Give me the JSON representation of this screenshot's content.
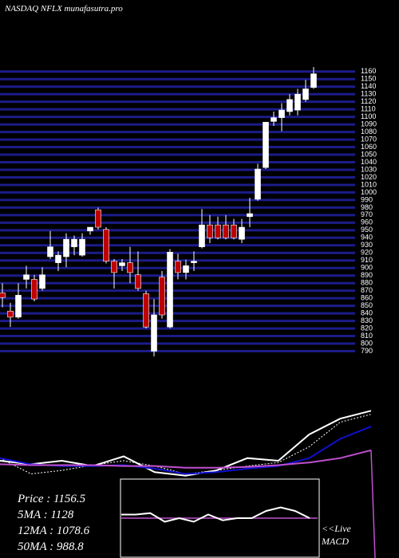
{
  "chart_data": {
    "type": "candlestick",
    "title": "NASDAQ NFLX munafasutra.pro",
    "ylim": [
      780,
      1165
    ],
    "yticks": [
      790,
      800,
      810,
      820,
      830,
      840,
      850,
      860,
      870,
      880,
      890,
      900,
      910,
      920,
      930,
      940,
      950,
      960,
      970,
      980,
      990,
      1000,
      1010,
      1020,
      1030,
      1040,
      1050,
      1060,
      1070,
      1080,
      1090,
      1100,
      1110,
      1120,
      1130,
      1140,
      1150,
      1160
    ],
    "grid": true,
    "grid_color": "#1c1c8a",
    "up_color": "#ffffff",
    "down_color": "#c00000",
    "candles": [
      {
        "open": 867,
        "high": 880,
        "low": 848,
        "close": 861
      },
      {
        "open": 843,
        "high": 854,
        "low": 822,
        "close": 835
      },
      {
        "open": 835,
        "high": 880,
        "low": 833,
        "close": 864
      },
      {
        "open": 885,
        "high": 903,
        "low": 873,
        "close": 891
      },
      {
        "open": 885,
        "high": 891,
        "low": 856,
        "close": 859
      },
      {
        "open": 873,
        "high": 901,
        "low": 870,
        "close": 891
      },
      {
        "open": 915,
        "high": 949,
        "low": 912,
        "close": 928
      },
      {
        "open": 907,
        "high": 922,
        "low": 896,
        "close": 917
      },
      {
        "open": 915,
        "high": 946,
        "low": 901,
        "close": 938
      },
      {
        "open": 928,
        "high": 943,
        "low": 917,
        "close": 938
      },
      {
        "open": 917,
        "high": 946,
        "low": 915,
        "close": 938
      },
      {
        "open": 949,
        "high": 954,
        "low": 944,
        "close": 954
      },
      {
        "open": 977,
        "high": 980,
        "low": 951,
        "close": 954
      },
      {
        "open": 951,
        "high": 954,
        "low": 906,
        "close": 909
      },
      {
        "open": 909,
        "high": 912,
        "low": 873,
        "close": 894
      },
      {
        "open": 903,
        "high": 912,
        "low": 896,
        "close": 907
      },
      {
        "open": 907,
        "high": 928,
        "low": 880,
        "close": 894
      },
      {
        "open": 891,
        "high": 922,
        "low": 870,
        "close": 873
      },
      {
        "open": 866,
        "high": 870,
        "low": 820,
        "close": 822
      },
      {
        "open": 790,
        "high": 859,
        "low": 783,
        "close": 838
      },
      {
        "open": 888,
        "high": 896,
        "low": 833,
        "close": 838
      },
      {
        "open": 822,
        "high": 925,
        "low": 820,
        "close": 921
      },
      {
        "open": 909,
        "high": 919,
        "low": 885,
        "close": 894
      },
      {
        "open": 894,
        "high": 911,
        "low": 885,
        "close": 903
      },
      {
        "open": 907,
        "high": 922,
        "low": 896,
        "close": 909
      },
      {
        "open": 928,
        "high": 978,
        "low": 926,
        "close": 957
      },
      {
        "open": 957,
        "high": 970,
        "low": 933,
        "close": 940
      },
      {
        "open": 957,
        "high": 968,
        "low": 938,
        "close": 940
      },
      {
        "open": 957,
        "high": 970,
        "low": 938,
        "close": 940
      },
      {
        "open": 957,
        "high": 965,
        "low": 938,
        "close": 940
      },
      {
        "open": 938,
        "high": 965,
        "low": 933,
        "close": 954
      },
      {
        "open": 968,
        "high": 993,
        "low": 954,
        "close": 972
      },
      {
        "open": 991,
        "high": 1038,
        "low": 989,
        "close": 1031
      },
      {
        "open": 1033,
        "high": 1093,
        "low": 1031,
        "close": 1093
      },
      {
        "open": 1094,
        "high": 1107,
        "low": 1088,
        "close": 1099
      },
      {
        "open": 1099,
        "high": 1118,
        "low": 1081,
        "close": 1109
      },
      {
        "open": 1107,
        "high": 1130,
        "low": 1102,
        "close": 1123
      },
      {
        "open": 1109,
        "high": 1137,
        "low": 1102,
        "close": 1130
      },
      {
        "open": 1123,
        "high": 1149,
        "low": 1120,
        "close": 1137
      },
      {
        "open": 1139,
        "high": 1166,
        "low": 1137,
        "close": 1157
      }
    ],
    "ma_panel": {
      "type": "line",
      "ylim": [
        0,
        100
      ],
      "series": [
        {
          "color": "#ffffff",
          "values": [
            20,
            16,
            20,
            14,
            25,
            7,
            3,
            9,
            23,
            20,
            50,
            68,
            77
          ]
        },
        {
          "color": "#ffffff",
          "dashed": true,
          "values": [
            23,
            5,
            9,
            15,
            20,
            14,
            5,
            9,
            14,
            18,
            36,
            64,
            73
          ]
        },
        {
          "color": "#1010d0",
          "values": [
            23,
            16,
            14,
            14,
            15,
            11,
            5,
            7,
            11,
            14,
            23,
            45,
            59
          ]
        },
        {
          "color": "#c050d0",
          "values": [
            16,
            15,
            15,
            15,
            14,
            14,
            12,
            12,
            13,
            15,
            18,
            23,
            32
          ]
        }
      ]
    },
    "macd": {
      "type": "line",
      "ylim": [
        -2.5,
        2.5
      ],
      "signal": 0,
      "signal_color": "#c050d0",
      "color": "#ffffff",
      "values": [
        0.25,
        0.25,
        0.35,
        -0.25,
        0,
        -0.25,
        0.25,
        -0.15,
        0,
        0,
        0.5,
        0.75,
        0.5,
        0
      ],
      "label_1": "<<Live",
      "label_2": "MACD"
    },
    "info": [
      "Price  : 1156.5",
      "5MA  : 1128",
      "12MA  : 1078.6",
      "50MA  : 988.8"
    ]
  }
}
